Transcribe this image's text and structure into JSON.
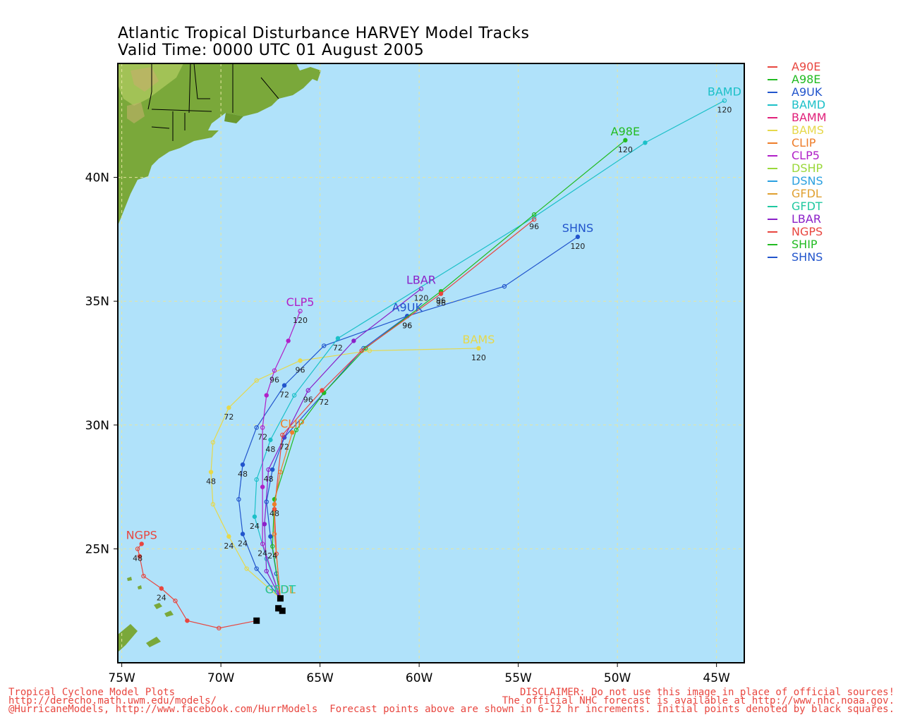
{
  "title": {
    "line1": "Atlantic Tropical Disturbance HARVEY Model Tracks",
    "line2": "Valid Time: 0000 UTC 01 August 2005"
  },
  "axes": {
    "x_ticks": [
      {
        "lon": -75,
        "label": "75W"
      },
      {
        "lon": -70,
        "label": "70W"
      },
      {
        "lon": -65,
        "label": "65W"
      },
      {
        "lon": -60,
        "label": "60W"
      },
      {
        "lon": -55,
        "label": "55W"
      },
      {
        "lon": -50,
        "label": "50W"
      },
      {
        "lon": -45,
        "label": "45W"
      }
    ],
    "y_ticks": [
      {
        "lat": 25,
        "label": "25N"
      },
      {
        "lat": 30,
        "label": "30N"
      },
      {
        "lat": 35,
        "label": "35N"
      },
      {
        "lat": 40,
        "label": "40N"
      }
    ],
    "lon_range": [
      -75.2,
      -43.6
    ],
    "lat_range": [
      20.4,
      44.6
    ]
  },
  "colors": {
    "ocean": "#b0e2fa",
    "grid": "#e6e6a0",
    "land": "#7aa83a"
  },
  "legend": [
    {
      "name": "A90E",
      "color": "#e8463f"
    },
    {
      "name": "A98E",
      "color": "#22bb22"
    },
    {
      "name": "A9UK",
      "color": "#2255cc"
    },
    {
      "name": "BAMD",
      "color": "#1cc0c8"
    },
    {
      "name": "BAMM",
      "color": "#e0207a"
    },
    {
      "name": "BAMS",
      "color": "#e6d84a"
    },
    {
      "name": "CLIP",
      "color": "#ee7d2a"
    },
    {
      "name": "CLP5",
      "color": "#b020c8"
    },
    {
      "name": "DSHP",
      "color": "#9ad83a"
    },
    {
      "name": "DSNS",
      "color": "#2aa0e0"
    },
    {
      "name": "GFDL",
      "color": "#e0a030"
    },
    {
      "name": "GFDT",
      "color": "#20c8a0"
    },
    {
      "name": "LBAR",
      "color": "#8a20c8"
    },
    {
      "name": "NGPS",
      "color": "#e8463f"
    },
    {
      "name": "SHIP",
      "color": "#22bb22"
    },
    {
      "name": "SHNS",
      "color": "#2255cc"
    }
  ],
  "tracks": [
    {
      "model": "NGPS",
      "color": "#e8463f",
      "label": "NGPS",
      "points": [
        [
          -68.2,
          22.1
        ],
        [
          -70.1,
          21.8
        ],
        [
          -71.7,
          22.1
        ],
        [
          -72.3,
          22.9
        ],
        [
          -73,
          23.4
        ],
        [
          -73.9,
          23.9
        ],
        [
          -74.1,
          24.7
        ],
        [
          -74.2,
          25.0
        ],
        [
          -74.0,
          25.2
        ]
      ],
      "hours": [
        {
          "i": 4,
          "t": "24"
        },
        {
          "i": 7,
          "t": "48"
        }
      ]
    },
    {
      "model": "BAMS",
      "color": "#e6d84a",
      "label": "BAMS",
      "points": [
        [
          -67.0,
          23.0
        ],
        [
          -68.7,
          24.2
        ],
        [
          -69.6,
          25.5
        ],
        [
          -70.4,
          26.8
        ],
        [
          -70.5,
          28.1
        ],
        [
          -70.4,
          29.3
        ],
        [
          -69.6,
          30.7
        ],
        [
          -68.2,
          31.8
        ],
        [
          -66.0,
          32.6
        ],
        [
          -62.5,
          33.0
        ],
        [
          -57.0,
          33.1
        ]
      ],
      "hours": [
        {
          "i": 2,
          "t": "24"
        },
        {
          "i": 4,
          "t": "48"
        },
        {
          "i": 6,
          "t": "72"
        },
        {
          "i": 8,
          "t": "96"
        },
        {
          "i": 10,
          "t": "120"
        }
      ]
    },
    {
      "model": "A9UK",
      "color": "#2255cc",
      "label": "A9UK",
      "points": [
        [
          -67.0,
          23.0
        ],
        [
          -68.2,
          24.2
        ],
        [
          -68.9,
          25.6
        ],
        [
          -69.1,
          27.0
        ],
        [
          -68.9,
          28.4
        ],
        [
          -68.2,
          29.9
        ],
        [
          -66.8,
          31.6
        ],
        [
          -64.8,
          33.2
        ],
        [
          -60.6,
          34.4
        ]
      ],
      "hours": [
        {
          "i": 2,
          "t": "24"
        },
        {
          "i": 4,
          "t": "48"
        },
        {
          "i": 6,
          "t": "72"
        },
        {
          "i": 8,
          "t": "96"
        }
      ]
    },
    {
      "model": "BAMD",
      "color": "#1cc0c8",
      "label": "BAMD",
      "points": [
        [
          -67.0,
          23.0
        ],
        [
          -67.7,
          24.6
        ],
        [
          -68.3,
          26.3
        ],
        [
          -68.2,
          27.8
        ],
        [
          -67.5,
          29.4
        ],
        [
          -66.3,
          31.2
        ],
        [
          -64.1,
          33.5
        ],
        [
          -54.2,
          38.4
        ],
        [
          -48.6,
          41.4
        ],
        [
          -44.6,
          43.1
        ]
      ],
      "hours": [
        {
          "i": 2,
          "t": "24"
        },
        {
          "i": 4,
          "t": "48"
        },
        {
          "i": 6,
          "t": "72"
        },
        {
          "i": 7,
          "t": "96"
        },
        {
          "i": 9,
          "t": "120"
        }
      ]
    },
    {
      "model": "CLP5",
      "color": "#b020c8",
      "label": "CLP5",
      "points": [
        [
          -67.0,
          23.0
        ],
        [
          -67.9,
          25.2
        ],
        [
          -67.9,
          27.5
        ],
        [
          -67.9,
          29.9
        ],
        [
          -67.7,
          31.2
        ],
        [
          -67.3,
          32.2
        ],
        [
          -66.6,
          33.4
        ],
        [
          -66.0,
          34.6
        ]
      ],
      "hours": [
        {
          "i": 1,
          "t": "24"
        },
        {
          "i": 3,
          "t": "72"
        },
        {
          "i": 5,
          "t": "96"
        },
        {
          "i": 7,
          "t": "120"
        }
      ]
    },
    {
      "model": "LBAR",
      "color": "#8a20c8",
      "label": "LBAR",
      "points": [
        [
          -67.0,
          23.0
        ],
        [
          -67.7,
          24.1
        ],
        [
          -67.8,
          26.0
        ],
        [
          -67.6,
          28.2
        ],
        [
          -66.8,
          29.5
        ],
        [
          -65.6,
          31.4
        ],
        [
          -63.3,
          33.4
        ],
        [
          -59.9,
          35.5
        ]
      ],
      "hours": [
        {
          "i": 3,
          "t": "48"
        },
        {
          "i": 4,
          "t": "72"
        },
        {
          "i": 5,
          "t": "96"
        },
        {
          "i": 7,
          "t": "120"
        }
      ]
    },
    {
      "model": "SHNS",
      "color": "#2255cc",
      "label": "SHNS",
      "points": [
        [
          -67.0,
          23.0
        ],
        [
          -67.2,
          24.0
        ],
        [
          -67.5,
          25.5
        ],
        [
          -67.7,
          26.9
        ],
        [
          -67.4,
          28.2
        ],
        [
          -66.8,
          29.5
        ],
        [
          -64.8,
          31.3
        ],
        [
          -62.8,
          33.1
        ],
        [
          -60.6,
          34.4
        ],
        [
          -55.7,
          35.6
        ],
        [
          -52.0,
          37.6
        ]
      ],
      "hours": [
        {
          "i": 8,
          "t": "96"
        },
        {
          "i": 10,
          "t": "120"
        }
      ]
    },
    {
      "model": "A98E",
      "color": "#22bb22",
      "label": "A98E",
      "points": [
        [
          -67.0,
          23.0
        ],
        [
          -67.4,
          25.1
        ],
        [
          -67.3,
          27.0
        ],
        [
          -66.2,
          29.8
        ],
        [
          -64.8,
          31.3
        ],
        [
          -62.7,
          33.1
        ],
        [
          -58.9,
          35.4
        ],
        [
          -54.2,
          38.5
        ],
        [
          -49.6,
          41.5
        ]
      ],
      "hours": [
        {
          "i": 1,
          "t": "24"
        },
        {
          "i": 4,
          "t": "72"
        },
        {
          "i": 6,
          "t": "96"
        },
        {
          "i": 8,
          "t": "120"
        }
      ]
    },
    {
      "model": "A90E",
      "color": "#e8463f",
      "label": "",
      "points": [
        [
          -67.0,
          23.0
        ],
        [
          -67.2,
          24.8
        ],
        [
          -67.3,
          26.6
        ],
        [
          -66.9,
          29.6
        ],
        [
          -64.9,
          31.4
        ],
        [
          -62.9,
          33.0
        ],
        [
          -58.9,
          35.3
        ],
        [
          -54.2,
          38.3
        ]
      ],
      "hours": [
        {
          "i": 6,
          "t": "96"
        }
      ]
    },
    {
      "model": "CLIP",
      "color": "#ee7d2a",
      "label": "CLIP",
      "points": [
        [
          -67.0,
          23.0
        ],
        [
          -67.3,
          25.6
        ],
        [
          -67.3,
          26.8
        ],
        [
          -67.0,
          28.1
        ],
        [
          -66.4,
          29.7
        ]
      ],
      "hours": [
        {
          "i": 2,
          "t": "48"
        }
      ]
    },
    {
      "model": "GFDL",
      "color": "#e0a030",
      "label": "GFDL",
      "points": [
        [
          -67.0,
          23.0
        ]
      ],
      "hours": []
    },
    {
      "model": "GFDT",
      "color": "#20c8a0",
      "label": "GFDT",
      "points": [
        [
          -67.0,
          23.0
        ]
      ],
      "hours": []
    }
  ],
  "initial_points": [
    [
      -67.0,
      23.0
    ],
    [
      -67.1,
      22.6
    ],
    [
      -66.9,
      22.5
    ],
    [
      -68.2,
      22.1
    ]
  ],
  "footer": {
    "left": [
      "Tropical Cyclone Model Plots",
      "http://derecho.math.uwm.edu/models/",
      "@HurricaneModels, http://www.facebook.com/HurrModels"
    ],
    "right": [
      "DISCLAIMER: Do not use this image in place of official sources!",
      "The official NHC forecast is available at http://www.nhc.noaa.gov.",
      "Forecast points above are shown in 6-12 hr increments. Initial points denoted by black squares."
    ]
  }
}
